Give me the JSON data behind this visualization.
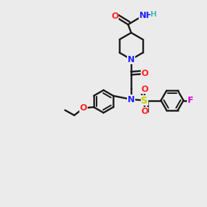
{
  "bg_color": "#ebebeb",
  "bond_color": "#1a1a1a",
  "N_color": "#2020ff",
  "O_color": "#ff2020",
  "S_color": "#cccc00",
  "F_color": "#cc00cc",
  "H_color": "#4db8b8",
  "figsize": [
    3.0,
    3.0
  ],
  "dpi": 100,
  "xlim": [
    0,
    10
  ],
  "ylim": [
    0,
    10
  ]
}
